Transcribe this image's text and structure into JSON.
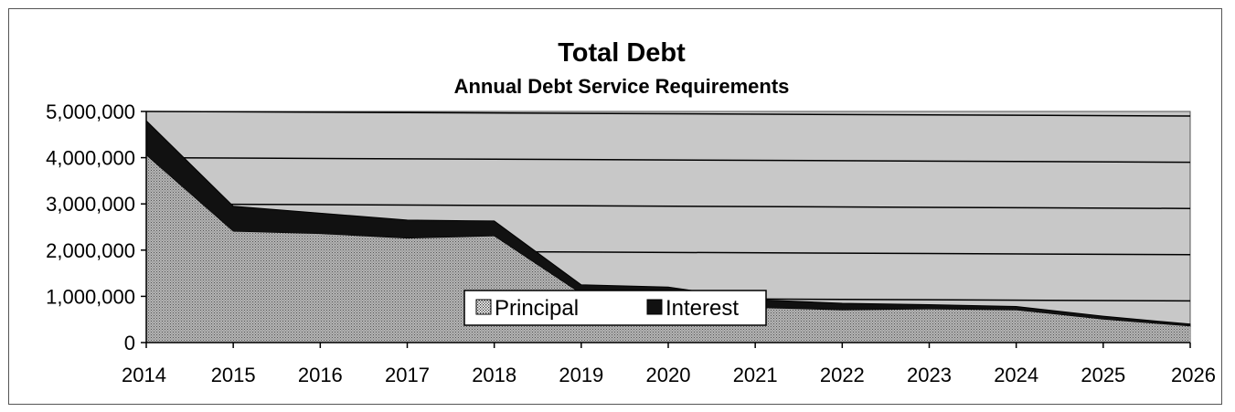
{
  "chart_data": {
    "type": "area",
    "stacked": true,
    "title": "Total Debt",
    "subtitle": "Annual Debt Service Requirements",
    "xlabel": "",
    "ylabel": "",
    "x": [
      "2014",
      "2015",
      "2016",
      "2017",
      "2018",
      "2019",
      "2020",
      "2021",
      "2022",
      "2023",
      "2024",
      "2025",
      "2026"
    ],
    "ylim": [
      0,
      5000000
    ],
    "yticks": [
      0,
      1000000,
      2000000,
      3000000,
      4000000,
      5000000
    ],
    "ytick_labels": [
      "0",
      "1,000,000",
      "2,000,000",
      "3,000,000",
      "4,000,000",
      "5,000,000"
    ],
    "grid": true,
    "legend_position": "bottom-center",
    "series": [
      {
        "name": "Principal",
        "values": [
          4050000,
          2400000,
          2350000,
          2250000,
          2300000,
          1050000,
          1000000,
          750000,
          700000,
          720000,
          700000,
          500000,
          350000
        ],
        "pattern": "dotted-gray"
      },
      {
        "name": "Interest",
        "values": [
          750000,
          550000,
          450000,
          400000,
          330000,
          200000,
          200000,
          180000,
          150000,
          100000,
          80000,
          70000,
          50000
        ],
        "color": "#111111"
      }
    ],
    "colors": {
      "plot_background": "#c8c8c8",
      "principal": "#9a9a9a",
      "interest": "#111111",
      "grid": "#000000"
    }
  }
}
